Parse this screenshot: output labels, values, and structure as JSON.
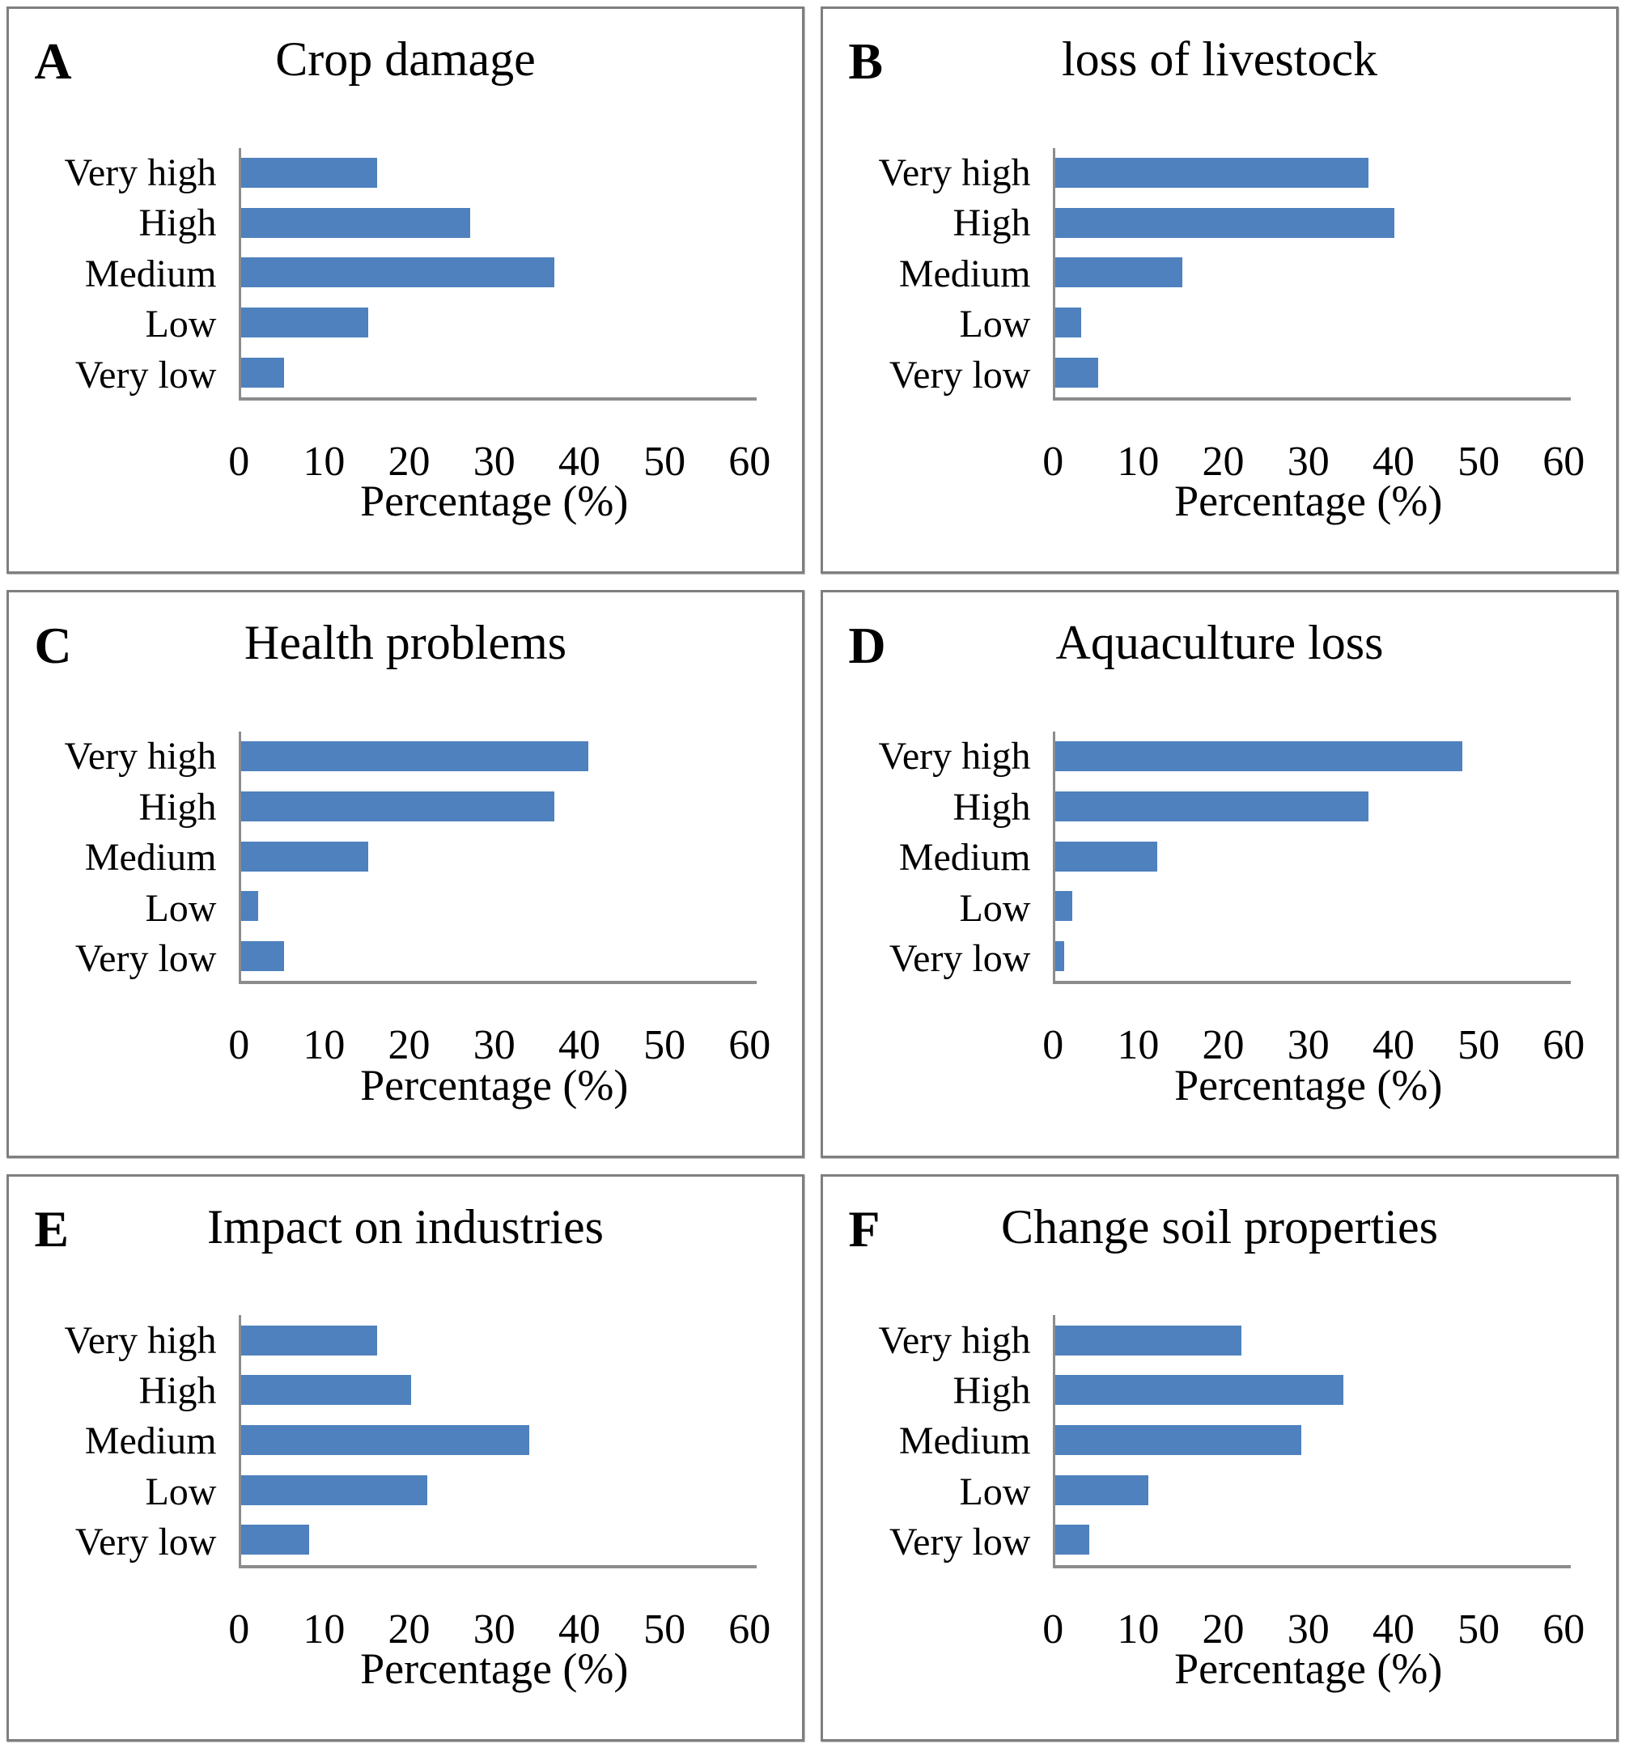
{
  "figure": {
    "bar_color": "#4E81BD",
    "axis_color": "#8C8C8C",
    "panel_border_color": "#7F7F7F",
    "layout": "2x3 grid of horizontal bar charts"
  },
  "chart_data": [
    {
      "type": "bar",
      "orientation": "horizontal",
      "letter": "A",
      "title": "Crop damage",
      "categories": [
        "Very high",
        "High",
        "Medium",
        "Low",
        "Very low"
      ],
      "values": [
        16,
        27,
        37,
        15,
        5
      ],
      "xlabel": "Percentage (%)",
      "xlim": [
        0,
        60
      ],
      "xticks": [
        0,
        10,
        20,
        30,
        40,
        50,
        60
      ],
      "grid": false,
      "legend": false
    },
    {
      "type": "bar",
      "orientation": "horizontal",
      "letter": "B",
      "title": "loss of livestock",
      "categories": [
        "Very high",
        "High",
        "Medium",
        "Low",
        "Very low"
      ],
      "values": [
        37,
        40,
        15,
        3,
        5
      ],
      "xlabel": "Percentage (%)",
      "xlim": [
        0,
        60
      ],
      "xticks": [
        0,
        10,
        20,
        30,
        40,
        50,
        60
      ],
      "grid": false,
      "legend": false
    },
    {
      "type": "bar",
      "orientation": "horizontal",
      "letter": "C",
      "title": "Health problems",
      "categories": [
        "Very high",
        "High",
        "Medium",
        "Low",
        "Very low"
      ],
      "values": [
        41,
        37,
        15,
        2,
        5
      ],
      "xlabel": "Percentage (%)",
      "xlim": [
        0,
        60
      ],
      "xticks": [
        0,
        10,
        20,
        30,
        40,
        50,
        60
      ],
      "grid": false,
      "legend": false
    },
    {
      "type": "bar",
      "orientation": "horizontal",
      "letter": "D",
      "title": "Aquaculture loss",
      "categories": [
        "Very high",
        "High",
        "Medium",
        "Low",
        "Very low"
      ],
      "values": [
        48,
        37,
        12,
        2,
        1
      ],
      "xlabel": "Percentage (%)",
      "xlim": [
        0,
        60
      ],
      "xticks": [
        0,
        10,
        20,
        30,
        40,
        50,
        60
      ],
      "grid": false,
      "legend": false
    },
    {
      "type": "bar",
      "orientation": "horizontal",
      "letter": "E",
      "title": "Impact on industries",
      "categories": [
        "Very high",
        "High",
        "Medium",
        "Low",
        "Very low"
      ],
      "values": [
        16,
        20,
        34,
        22,
        8
      ],
      "xlabel": "Percentage (%)",
      "xlim": [
        0,
        60
      ],
      "xticks": [
        0,
        10,
        20,
        30,
        40,
        50,
        60
      ],
      "grid": false,
      "legend": false
    },
    {
      "type": "bar",
      "orientation": "horizontal",
      "letter": "F",
      "title": "Change soil properties",
      "categories": [
        "Very high",
        "High",
        "Medium",
        "Low",
        "Very low"
      ],
      "values": [
        22,
        34,
        29,
        11,
        4
      ],
      "xlabel": "Percentage (%)",
      "xlim": [
        0,
        60
      ],
      "xticks": [
        0,
        10,
        20,
        30,
        40,
        50,
        60
      ],
      "grid": false,
      "legend": false
    }
  ]
}
